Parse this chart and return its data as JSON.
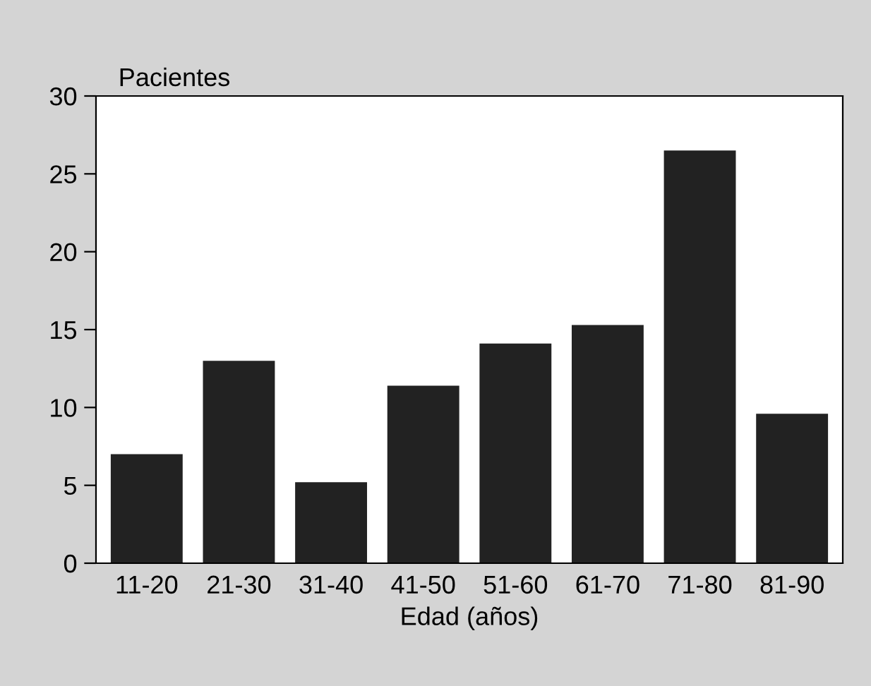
{
  "chart_data": {
    "type": "bar",
    "ylabel": "Pacientes",
    "xlabel": "Edad (años)",
    "categories": [
      "11-20",
      "21-30",
      "31-40",
      "41-50",
      "51-60",
      "61-70",
      "71-80",
      "81-90"
    ],
    "values": [
      7,
      13,
      5.2,
      11.4,
      14.1,
      15.3,
      26.5,
      9.6
    ],
    "color": "#222222",
    "ylim": [
      0,
      30
    ],
    "yticks": [
      0,
      5,
      10,
      15,
      20,
      25,
      30
    ],
    "grid": false
  }
}
